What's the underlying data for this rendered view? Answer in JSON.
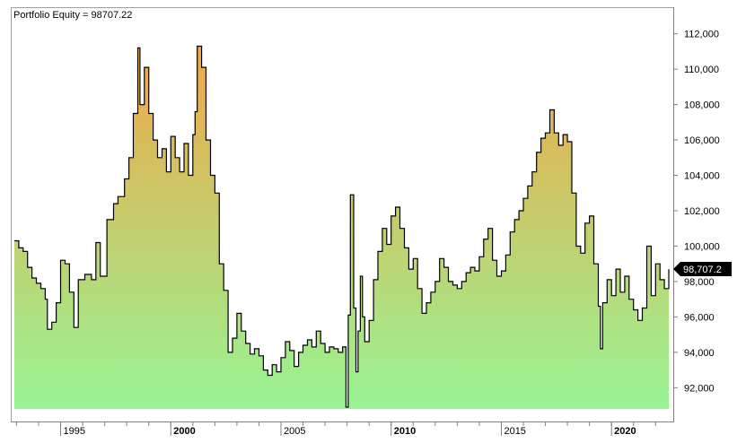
{
  "chart_data": {
    "type": "area",
    "title": "Portfolio Equity = 98707.22",
    "xlabel": "",
    "ylabel": "",
    "x_range": [
      1992.9,
      2022.6
    ],
    "ylim": [
      90800,
      113300
    ],
    "grid": false,
    "legend": "none",
    "y_ticks": [
      92000,
      94000,
      96000,
      98000,
      100000,
      102000,
      104000,
      106000,
      108000,
      110000,
      112000
    ],
    "y_tick_labels": [
      "92,000",
      "94,000",
      "96,000",
      "98,000",
      "100,000",
      "102,000",
      "104,000",
      "106,000",
      "108,000",
      "110,000",
      "112,000"
    ],
    "x_ticks": [
      {
        "year": 1995,
        "label": "1995",
        "major": false
      },
      {
        "year": 2000,
        "label": "2000",
        "major": true
      },
      {
        "year": 2005,
        "label": "2005",
        "major": false
      },
      {
        "year": 2010,
        "label": "2010",
        "major": true
      },
      {
        "year": 2015,
        "label": "2015",
        "major": false
      },
      {
        "year": 2020,
        "label": "2020",
        "major": true
      }
    ],
    "last_value_label": "98,707.2",
    "last_value": 98707.22,
    "colors": {
      "fill_top": "#f0a848",
      "fill_bottom": "#98f494",
      "line": "#000000",
      "value_tag": "#000000",
      "axis": "#808080"
    },
    "series": [
      {
        "values": [
          [
            1992.9,
            100300
          ],
          [
            1993.1,
            99900
          ],
          [
            1993.3,
            99700
          ],
          [
            1993.5,
            98800
          ],
          [
            1993.7,
            98200
          ],
          [
            1993.9,
            97900
          ],
          [
            1994.1,
            97600
          ],
          [
            1994.3,
            97000
          ],
          [
            1994.4,
            95300
          ],
          [
            1994.6,
            95700
          ],
          [
            1994.8,
            96800
          ],
          [
            1995.0,
            99200
          ],
          [
            1995.2,
            99000
          ],
          [
            1995.4,
            97400
          ],
          [
            1995.6,
            95400
          ],
          [
            1995.8,
            98100
          ],
          [
            1996.1,
            98400
          ],
          [
            1996.4,
            98100
          ],
          [
            1996.6,
            100200
          ],
          [
            1996.8,
            98300
          ],
          [
            1997.1,
            101500
          ],
          [
            1997.4,
            102400
          ],
          [
            1997.6,
            102800
          ],
          [
            1997.9,
            103800
          ],
          [
            1998.1,
            105000
          ],
          [
            1998.3,
            107500
          ],
          [
            1998.5,
            111200
          ],
          [
            1998.6,
            108000
          ],
          [
            1998.8,
            110100
          ],
          [
            1999.0,
            107500
          ],
          [
            1999.2,
            106000
          ],
          [
            1999.4,
            105000
          ],
          [
            1999.6,
            105500
          ],
          [
            1999.8,
            104200
          ],
          [
            2000.0,
            106200
          ],
          [
            2000.2,
            105000
          ],
          [
            2000.4,
            104200
          ],
          [
            2000.6,
            105800
          ],
          [
            2000.8,
            104000
          ],
          [
            2001.0,
            106300
          ],
          [
            2001.1,
            107600
          ],
          [
            2001.2,
            111300
          ],
          [
            2001.4,
            110100
          ],
          [
            2001.6,
            106000
          ],
          [
            2001.8,
            104000
          ],
          [
            2002.0,
            103000
          ],
          [
            2002.2,
            99000
          ],
          [
            2002.4,
            97500
          ],
          [
            2002.6,
            94000
          ],
          [
            2002.8,
            94800
          ],
          [
            2003.0,
            96200
          ],
          [
            2003.2,
            95200
          ],
          [
            2003.4,
            94500
          ],
          [
            2003.6,
            93900
          ],
          [
            2003.8,
            94200
          ],
          [
            2004.0,
            93800
          ],
          [
            2004.2,
            93000
          ],
          [
            2004.4,
            92700
          ],
          [
            2004.6,
            93300
          ],
          [
            2004.8,
            92900
          ],
          [
            2005.0,
            93700
          ],
          [
            2005.2,
            94600
          ],
          [
            2005.4,
            94100
          ],
          [
            2005.6,
            93200
          ],
          [
            2005.8,
            94000
          ],
          [
            2006.0,
            94400
          ],
          [
            2006.2,
            94700
          ],
          [
            2006.4,
            94300
          ],
          [
            2006.6,
            95200
          ],
          [
            2006.8,
            94500
          ],
          [
            2007.0,
            94000
          ],
          [
            2007.2,
            94300
          ],
          [
            2007.4,
            94200
          ],
          [
            2007.6,
            94000
          ],
          [
            2007.8,
            94300
          ],
          [
            2007.95,
            90900
          ],
          [
            2008.05,
            96100
          ],
          [
            2008.15,
            102900
          ],
          [
            2008.3,
            96500
          ],
          [
            2008.4,
            92900
          ],
          [
            2008.5,
            95200
          ],
          [
            2008.6,
            98300
          ],
          [
            2008.7,
            96000
          ],
          [
            2008.8,
            94600
          ],
          [
            2009.0,
            95800
          ],
          [
            2009.2,
            98100
          ],
          [
            2009.4,
            99700
          ],
          [
            2009.6,
            101000
          ],
          [
            2009.8,
            100100
          ],
          [
            2010.0,
            101700
          ],
          [
            2010.2,
            102200
          ],
          [
            2010.4,
            101000
          ],
          [
            2010.6,
            99900
          ],
          [
            2010.8,
            98700
          ],
          [
            2011.0,
            99300
          ],
          [
            2011.2,
            97600
          ],
          [
            2011.4,
            96200
          ],
          [
            2011.6,
            96800
          ],
          [
            2011.8,
            97400
          ],
          [
            2012.0,
            98000
          ],
          [
            2012.2,
            99300
          ],
          [
            2012.4,
            98800
          ],
          [
            2012.6,
            98000
          ],
          [
            2012.8,
            97800
          ],
          [
            2013.0,
            97600
          ],
          [
            2013.2,
            98000
          ],
          [
            2013.4,
            98500
          ],
          [
            2013.6,
            98800
          ],
          [
            2013.8,
            98600
          ],
          [
            2014.0,
            99400
          ],
          [
            2014.2,
            100400
          ],
          [
            2014.4,
            101000
          ],
          [
            2014.6,
            99200
          ],
          [
            2014.8,
            98300
          ],
          [
            2015.0,
            98600
          ],
          [
            2015.2,
            99500
          ],
          [
            2015.4,
            100800
          ],
          [
            2015.6,
            101500
          ],
          [
            2015.8,
            102000
          ],
          [
            2016.0,
            102700
          ],
          [
            2016.2,
            103400
          ],
          [
            2016.4,
            104200
          ],
          [
            2016.6,
            105300
          ],
          [
            2016.8,
            106100
          ],
          [
            2017.0,
            106400
          ],
          [
            2017.2,
            107700
          ],
          [
            2017.4,
            106400
          ],
          [
            2017.6,
            105700
          ],
          [
            2017.8,
            106300
          ],
          [
            2018.0,
            105900
          ],
          [
            2018.2,
            103000
          ],
          [
            2018.4,
            100000
          ],
          [
            2018.6,
            99600
          ],
          [
            2018.8,
            101300
          ],
          [
            2019.0,
            101700
          ],
          [
            2019.2,
            99000
          ],
          [
            2019.4,
            96600
          ],
          [
            2019.5,
            94200
          ],
          [
            2019.6,
            96800
          ],
          [
            2019.8,
            98100
          ],
          [
            2020.0,
            97200
          ],
          [
            2020.2,
            98700
          ],
          [
            2020.4,
            97400
          ],
          [
            2020.6,
            98300
          ],
          [
            2020.8,
            97000
          ],
          [
            2021.0,
            96400
          ],
          [
            2021.2,
            95800
          ],
          [
            2021.4,
            96500
          ],
          [
            2021.6,
            100000
          ],
          [
            2021.8,
            97200
          ],
          [
            2022.0,
            99000
          ],
          [
            2022.2,
            98100
          ],
          [
            2022.4,
            97600
          ],
          [
            2022.6,
            98700
          ]
        ]
      }
    ]
  }
}
